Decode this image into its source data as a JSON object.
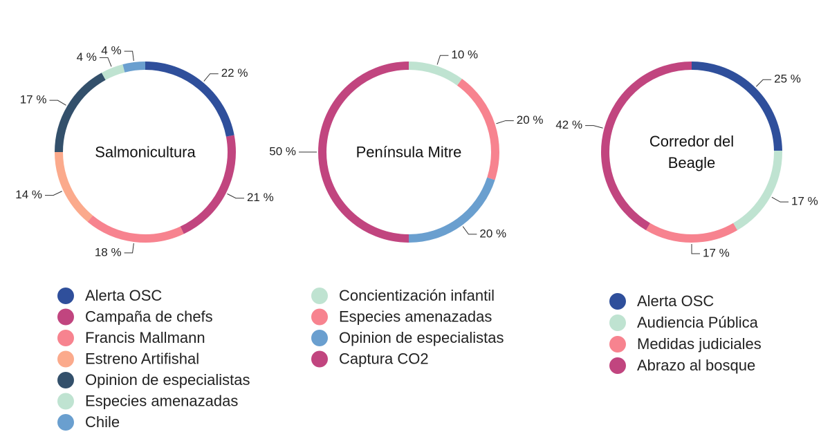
{
  "chart_data": [
    {
      "type": "pie",
      "title": "Salmonicultura",
      "labels": [
        "Alerta OSC",
        "Campaña de chefs",
        "Francis Mallmann",
        "Estreno Artifishal",
        "Opinion de especialistas",
        "Especies amenazadas",
        "Chile"
      ],
      "values": [
        22,
        21,
        18,
        14,
        17,
        4,
        4
      ],
      "value_labels": [
        "22 %",
        "21 %",
        "18 %",
        "14 %",
        "17 %",
        "4 %",
        "4 %"
      ],
      "colors": [
        "#2f4f9b",
        "#c1457f",
        "#f7838f",
        "#fbaa8c",
        "#33506b",
        "#bfe3d1",
        "#6a9fcf"
      ]
    },
    {
      "type": "pie",
      "title": "Península Mitre",
      "labels": [
        "Concientización infantil",
        "Especies amenazadas",
        "Opinion de especialistas",
        "Captura CO2"
      ],
      "values": [
        10,
        20,
        20,
        50
      ],
      "value_labels": [
        "10 %",
        "20 %",
        "20 %",
        "50 %"
      ],
      "colors": [
        "#bfe3d1",
        "#f7838f",
        "#6a9fcf",
        "#c1457f"
      ]
    },
    {
      "type": "pie",
      "title": "Corredor del Beagle",
      "labels": [
        "Alerta OSC",
        "Audiencia Pública",
        "Medidas judiciales",
        "Abrazo al bosque"
      ],
      "values": [
        25,
        17,
        17,
        42
      ],
      "value_labels": [
        "25 %",
        "17 %",
        "17 %",
        "42 %"
      ],
      "colors": [
        "#2f4f9b",
        "#bfe3d1",
        "#f7838f",
        "#c1457f"
      ]
    }
  ]
}
